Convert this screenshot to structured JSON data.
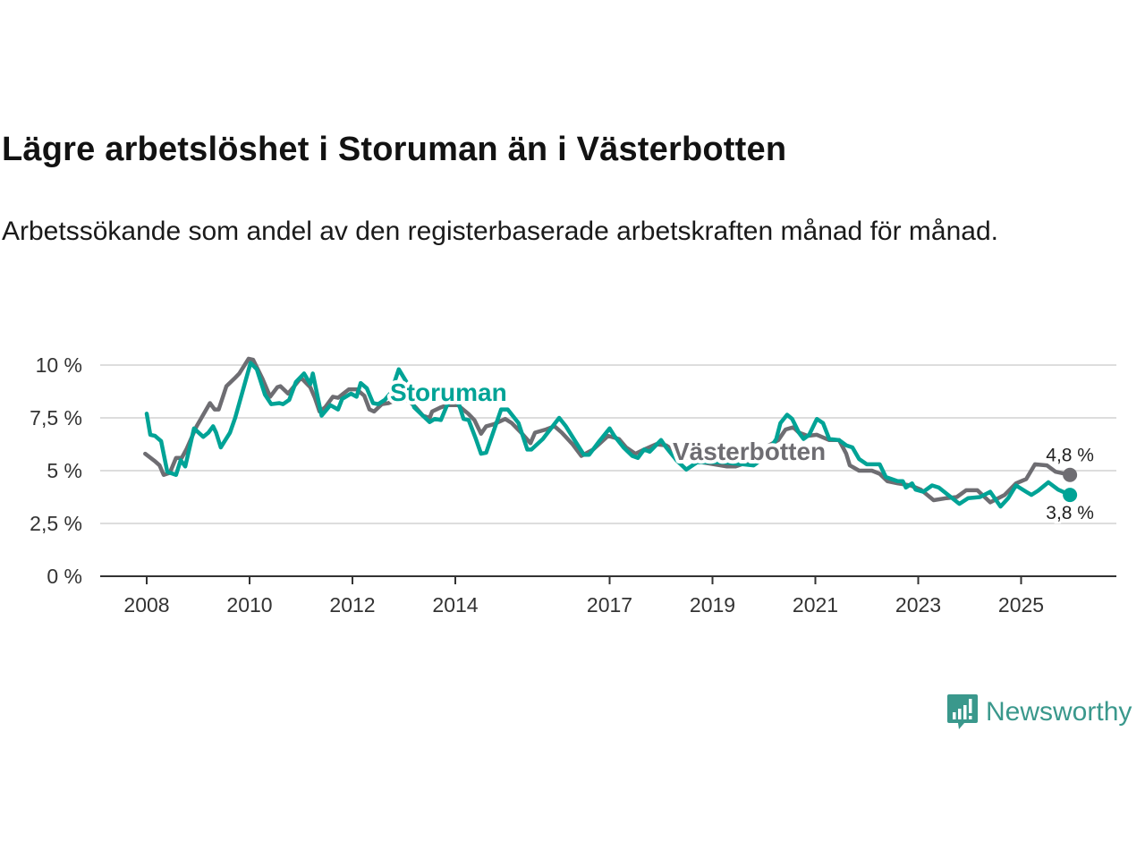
{
  "header": {
    "title": "Lägre arbetslöshet i Storuman än i Västerbotten",
    "subtitle": "Arbetssökande som andel av den registerbaserade arbetskraften månad för månad."
  },
  "branding": {
    "name": "Newsworthy",
    "color": "#3a988c"
  },
  "chart_data": {
    "type": "line",
    "title": "Lägre arbetslöshet i Storuman än i Västerbotten",
    "xlabel": "",
    "ylabel": "",
    "xlim": [
      2007.3,
      2027.1
    ],
    "ylim": [
      0,
      10
    ],
    "grid": true,
    "x_ticks": [
      2008,
      2010,
      2012,
      2014,
      2017,
      2019,
      2021,
      2023,
      2025
    ],
    "x_tick_labels": [
      "2008",
      "2010",
      "2012",
      "2014",
      "2017",
      "2019",
      "2021",
      "2023",
      "2025"
    ],
    "y_ticks": [
      0,
      2.5,
      5,
      7.5,
      10
    ],
    "y_tick_labels": [
      "0 %",
      "2,5 %",
      "5 %",
      "7,5 %",
      "10 %"
    ],
    "series": [
      {
        "name": "Västerbotten",
        "color": "#6e6d72",
        "label_at": [
          2019.2,
          5.1
        ],
        "end_label": "4,8 %",
        "points": [
          [
            2007.97,
            5.8
          ],
          [
            2008.16,
            5.45
          ],
          [
            2008.25,
            5.25
          ],
          [
            2008.33,
            4.8
          ],
          [
            2008.45,
            4.9
          ],
          [
            2008.57,
            5.6
          ],
          [
            2008.68,
            5.6
          ],
          [
            2008.77,
            6.0
          ],
          [
            2008.97,
            7.1
          ],
          [
            2009.23,
            8.2
          ],
          [
            2009.32,
            7.9
          ],
          [
            2009.4,
            7.9
          ],
          [
            2009.55,
            9.0
          ],
          [
            2009.7,
            9.35
          ],
          [
            2009.8,
            9.6
          ],
          [
            2009.98,
            10.3
          ],
          [
            2010.07,
            10.25
          ],
          [
            2010.25,
            9.35
          ],
          [
            2010.4,
            8.5
          ],
          [
            2010.54,
            8.95
          ],
          [
            2010.6,
            9.0
          ],
          [
            2010.75,
            8.65
          ],
          [
            2010.85,
            8.95
          ],
          [
            2011.0,
            9.4
          ],
          [
            2011.18,
            8.95
          ],
          [
            2011.27,
            8.45
          ],
          [
            2011.36,
            7.8
          ],
          [
            2011.47,
            8.0
          ],
          [
            2011.62,
            8.5
          ],
          [
            2011.72,
            8.45
          ],
          [
            2011.93,
            8.85
          ],
          [
            2012.08,
            8.85
          ],
          [
            2012.23,
            8.55
          ],
          [
            2012.33,
            7.9
          ],
          [
            2012.42,
            7.8
          ],
          [
            2012.57,
            8.15
          ],
          [
            2012.7,
            8.2
          ],
          [
            2012.9,
            8.4
          ],
          [
            2013.1,
            8.3
          ],
          [
            2013.23,
            8.0
          ],
          [
            2013.37,
            7.6
          ],
          [
            2013.5,
            7.5
          ],
          [
            2013.55,
            7.8
          ],
          [
            2013.72,
            8.0
          ],
          [
            2013.84,
            8.1
          ],
          [
            2014.05,
            8.1
          ],
          [
            2014.25,
            7.7
          ],
          [
            2014.37,
            7.4
          ],
          [
            2014.5,
            6.75
          ],
          [
            2014.6,
            7.1
          ],
          [
            2014.75,
            7.2
          ],
          [
            2014.97,
            7.45
          ],
          [
            2015.1,
            7.25
          ],
          [
            2015.28,
            6.8
          ],
          [
            2015.46,
            6.3
          ],
          [
            2015.55,
            6.8
          ],
          [
            2015.76,
            6.95
          ],
          [
            2015.93,
            7.1
          ],
          [
            2016.07,
            6.8
          ],
          [
            2016.28,
            6.25
          ],
          [
            2016.45,
            5.7
          ],
          [
            2016.68,
            6.0
          ],
          [
            2016.97,
            6.65
          ],
          [
            2017.18,
            6.5
          ],
          [
            2017.32,
            6.1
          ],
          [
            2017.5,
            5.8
          ],
          [
            2017.67,
            6.0
          ],
          [
            2017.9,
            6.25
          ],
          [
            2018.1,
            6.2
          ],
          [
            2018.4,
            5.7
          ],
          [
            2018.8,
            5.4
          ],
          [
            2019.28,
            5.2
          ],
          [
            2019.45,
            5.2
          ],
          [
            2019.8,
            5.5
          ],
          [
            2020.1,
            6.2
          ],
          [
            2020.28,
            6.45
          ],
          [
            2020.42,
            6.95
          ],
          [
            2020.57,
            7.05
          ],
          [
            2020.68,
            6.8
          ],
          [
            2020.85,
            6.65
          ],
          [
            2021.03,
            6.7
          ],
          [
            2021.27,
            6.45
          ],
          [
            2021.46,
            6.45
          ],
          [
            2021.6,
            5.8
          ],
          [
            2021.67,
            5.25
          ],
          [
            2021.85,
            5.0
          ],
          [
            2022.1,
            5.0
          ],
          [
            2022.25,
            4.85
          ],
          [
            2022.4,
            4.5
          ],
          [
            2022.6,
            4.4
          ],
          [
            2022.85,
            4.3
          ],
          [
            2023.05,
            4.1
          ],
          [
            2023.3,
            3.6
          ],
          [
            2023.55,
            3.7
          ],
          [
            2023.75,
            3.75
          ],
          [
            2023.93,
            4.07
          ],
          [
            2024.15,
            4.07
          ],
          [
            2024.4,
            3.5
          ],
          [
            2024.68,
            3.85
          ],
          [
            2024.9,
            4.4
          ],
          [
            2025.1,
            4.6
          ],
          [
            2025.27,
            5.3
          ],
          [
            2025.5,
            5.25
          ],
          [
            2025.67,
            4.95
          ],
          [
            2025.95,
            4.8
          ]
        ]
      },
      {
        "name": "Storuman",
        "color": "#00a396",
        "label_at": [
          2012.7,
          8.4
        ],
        "end_label": "3,8 %",
        "points": [
          [
            2008.0,
            7.7
          ],
          [
            2008.07,
            6.7
          ],
          [
            2008.16,
            6.65
          ],
          [
            2008.28,
            6.4
          ],
          [
            2008.4,
            4.95
          ],
          [
            2008.57,
            4.8
          ],
          [
            2008.66,
            5.5
          ],
          [
            2008.75,
            5.2
          ],
          [
            2008.92,
            7.0
          ],
          [
            2009.1,
            6.6
          ],
          [
            2009.2,
            6.8
          ],
          [
            2009.29,
            7.1
          ],
          [
            2009.35,
            6.8
          ],
          [
            2009.44,
            6.1
          ],
          [
            2009.62,
            6.8
          ],
          [
            2009.72,
            7.5
          ],
          [
            2010.02,
            10.1
          ],
          [
            2010.14,
            9.8
          ],
          [
            2010.3,
            8.6
          ],
          [
            2010.42,
            8.15
          ],
          [
            2010.58,
            8.2
          ],
          [
            2010.65,
            8.15
          ],
          [
            2010.77,
            8.35
          ],
          [
            2010.9,
            9.2
          ],
          [
            2011.06,
            9.6
          ],
          [
            2011.18,
            9.1
          ],
          [
            2011.23,
            9.6
          ],
          [
            2011.4,
            7.6
          ],
          [
            2011.57,
            8.1
          ],
          [
            2011.72,
            7.9
          ],
          [
            2011.8,
            8.4
          ],
          [
            2011.97,
            8.65
          ],
          [
            2012.08,
            8.5
          ],
          [
            2012.16,
            9.15
          ],
          [
            2012.28,
            8.9
          ],
          [
            2012.4,
            8.2
          ],
          [
            2012.5,
            8.15
          ],
          [
            2012.63,
            8.35
          ],
          [
            2012.75,
            8.7
          ],
          [
            2012.9,
            9.8
          ],
          [
            2013.05,
            9.2
          ],
          [
            2013.2,
            8.0
          ],
          [
            2013.37,
            7.6
          ],
          [
            2013.5,
            7.3
          ],
          [
            2013.6,
            7.45
          ],
          [
            2013.72,
            7.4
          ],
          [
            2013.84,
            8.1
          ],
          [
            2013.95,
            8.4
          ],
          [
            2014.07,
            8.15
          ],
          [
            2014.16,
            7.45
          ],
          [
            2014.26,
            7.4
          ],
          [
            2014.4,
            6.5
          ],
          [
            2014.5,
            5.8
          ],
          [
            2014.6,
            5.85
          ],
          [
            2014.89,
            7.9
          ],
          [
            2015.02,
            7.9
          ],
          [
            2015.23,
            7.25
          ],
          [
            2015.4,
            6.0
          ],
          [
            2015.48,
            6.0
          ],
          [
            2015.7,
            6.5
          ],
          [
            2016.02,
            7.5
          ],
          [
            2016.15,
            7.1
          ],
          [
            2016.33,
            6.4
          ],
          [
            2016.5,
            5.75
          ],
          [
            2016.6,
            5.75
          ],
          [
            2016.8,
            6.4
          ],
          [
            2017.0,
            7.0
          ],
          [
            2017.09,
            6.65
          ],
          [
            2017.27,
            6.1
          ],
          [
            2017.44,
            5.7
          ],
          [
            2017.55,
            5.6
          ],
          [
            2017.67,
            6.0
          ],
          [
            2017.78,
            5.9
          ],
          [
            2018.0,
            6.45
          ],
          [
            2018.1,
            6.1
          ],
          [
            2018.3,
            5.5
          ],
          [
            2018.49,
            5.05
          ],
          [
            2018.7,
            5.4
          ],
          [
            2019.2,
            5.4
          ],
          [
            2019.6,
            5.3
          ],
          [
            2019.8,
            5.25
          ],
          [
            2020.0,
            5.6
          ],
          [
            2020.24,
            6.5
          ],
          [
            2020.32,
            7.25
          ],
          [
            2020.45,
            7.65
          ],
          [
            2020.55,
            7.45
          ],
          [
            2020.68,
            6.8
          ],
          [
            2020.77,
            6.5
          ],
          [
            2020.88,
            6.7
          ],
          [
            2021.03,
            7.45
          ],
          [
            2021.15,
            7.25
          ],
          [
            2021.27,
            6.5
          ],
          [
            2021.46,
            6.45
          ],
          [
            2021.6,
            6.2
          ],
          [
            2021.72,
            6.1
          ],
          [
            2021.85,
            5.55
          ],
          [
            2022.0,
            5.3
          ],
          [
            2022.25,
            5.3
          ],
          [
            2022.37,
            4.7
          ],
          [
            2022.6,
            4.5
          ],
          [
            2022.7,
            4.5
          ],
          [
            2022.76,
            4.2
          ],
          [
            2022.88,
            4.4
          ],
          [
            2022.95,
            4.1
          ],
          [
            2023.1,
            4.0
          ],
          [
            2023.27,
            4.3
          ],
          [
            2023.4,
            4.2
          ],
          [
            2023.8,
            3.43
          ],
          [
            2023.97,
            3.7
          ],
          [
            2024.2,
            3.75
          ],
          [
            2024.4,
            4.0
          ],
          [
            2024.6,
            3.3
          ],
          [
            2024.75,
            3.7
          ],
          [
            2024.9,
            4.3
          ],
          [
            2025.1,
            4.0
          ],
          [
            2025.2,
            3.85
          ],
          [
            2025.33,
            4.05
          ],
          [
            2025.53,
            4.45
          ],
          [
            2025.72,
            4.1
          ],
          [
            2025.95,
            3.85
          ]
        ]
      }
    ]
  }
}
